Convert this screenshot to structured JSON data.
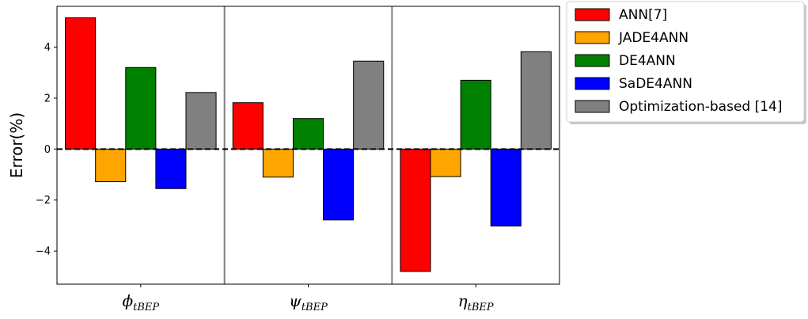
{
  "chart_data": {
    "type": "bar",
    "categories": [
      {
        "base": "ϕ",
        "sub": "tBEP"
      },
      {
        "base": "ψ",
        "sub": "tBEP"
      },
      {
        "base": "η",
        "sub": "tBEP"
      }
    ],
    "series": [
      {
        "name": "ANN[7]",
        "color": "#ff0000",
        "values": [
          5.15,
          1.82,
          -4.8
        ]
      },
      {
        "name": "JADE4ANN",
        "color": "#ffa500",
        "values": [
          -1.28,
          -1.1,
          -1.08
        ]
      },
      {
        "name": "DE4ANN",
        "color": "#008000",
        "values": [
          3.2,
          1.2,
          2.7
        ]
      },
      {
        "name": "SaDE4ANN",
        "color": "#0000ff",
        "values": [
          -1.55,
          -2.78,
          -3.02
        ]
      },
      {
        "name": "Optimization-based [14]",
        "color": "#808080",
        "values": [
          2.22,
          3.45,
          3.82
        ]
      }
    ],
    "ylabel": "Error(%)",
    "xlabel": "",
    "ylim": [
      -5.3,
      5.6
    ],
    "yticks": [
      -4,
      -2,
      0,
      2,
      4
    ],
    "ytick_labels": [
      "−4",
      "−2",
      "0",
      "2",
      "4"
    ],
    "zero_line": "dashed",
    "group_separators": true,
    "grid": false,
    "legend_position": "outside-right-top"
  }
}
